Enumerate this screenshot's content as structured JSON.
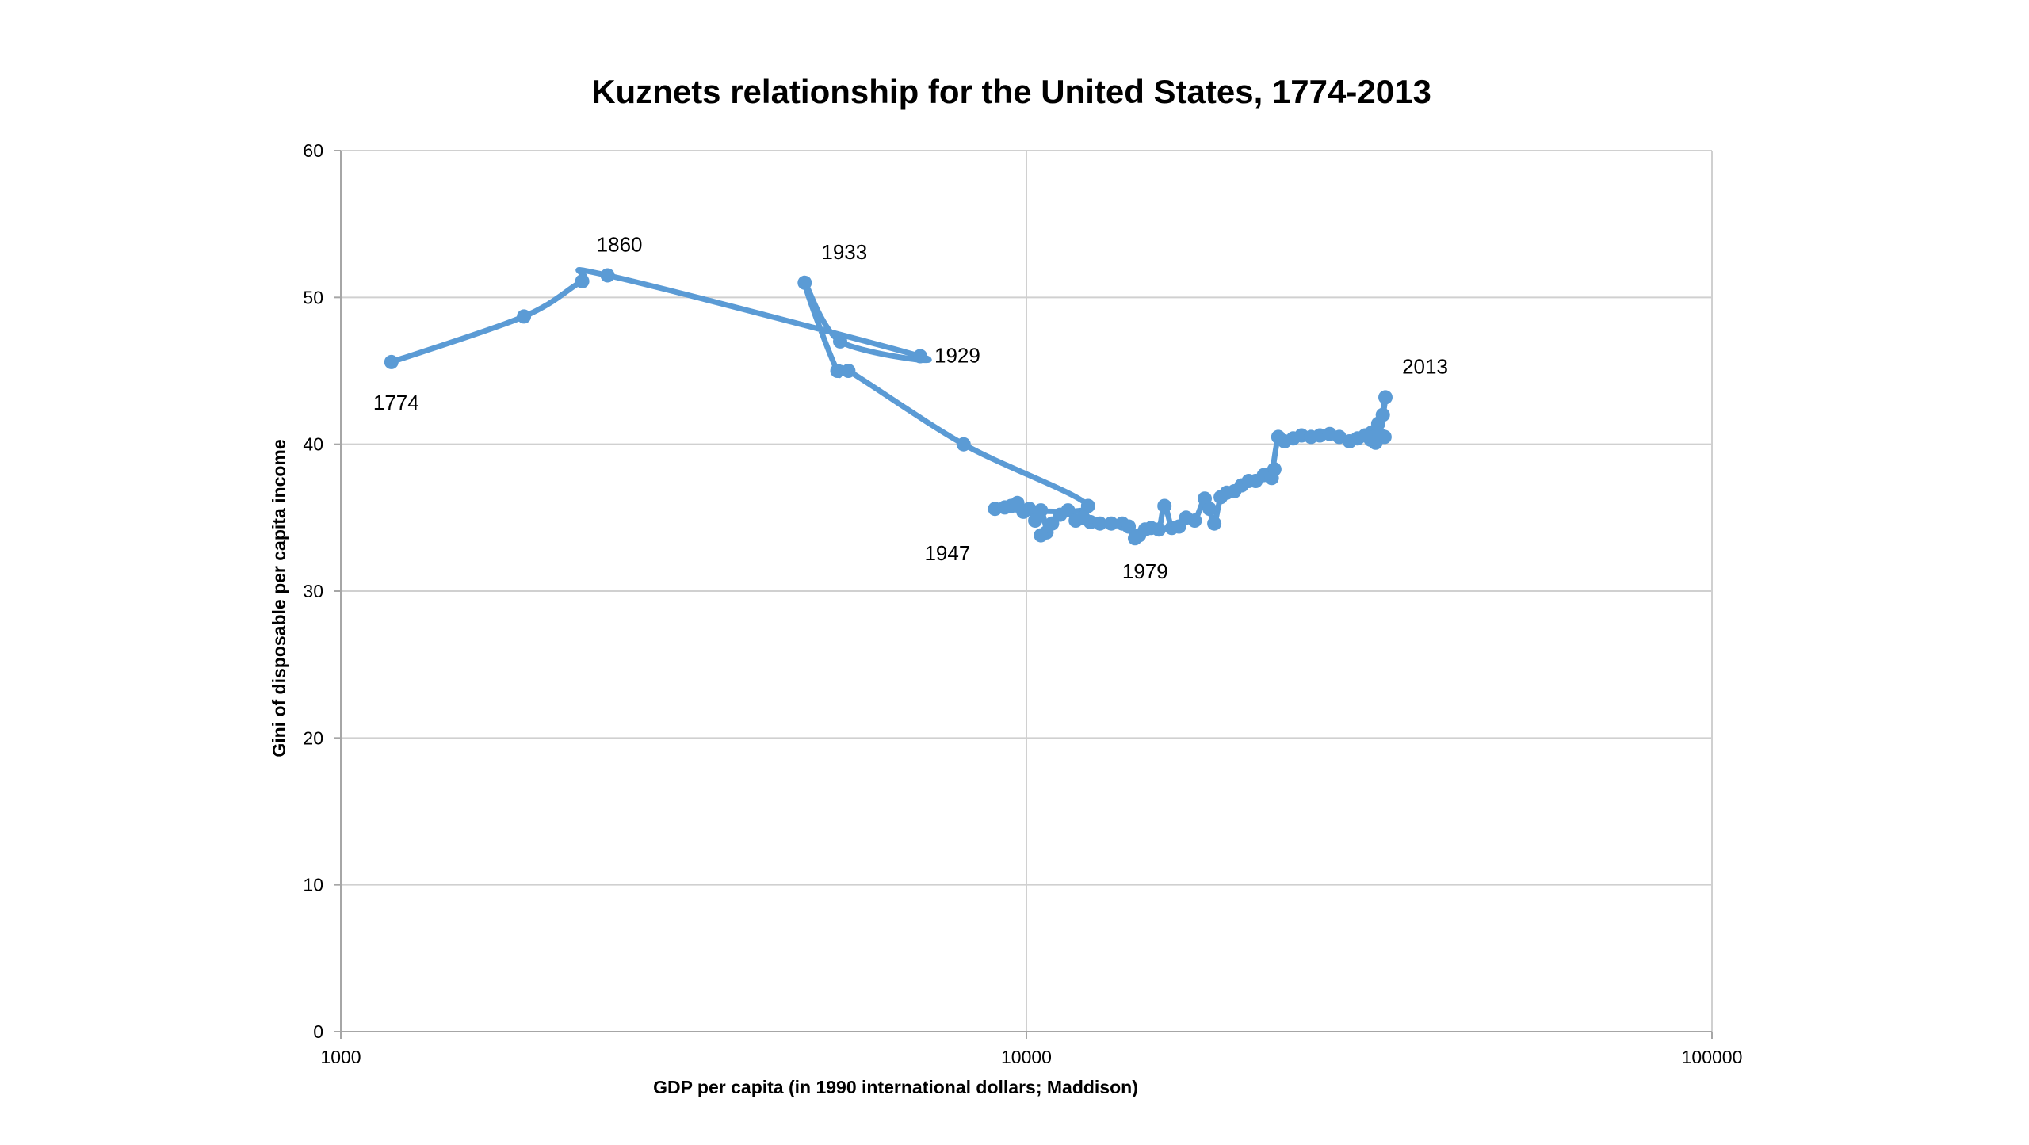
{
  "chart_data": {
    "type": "line",
    "title": "Kuznets relationship for the United States, 1774-2013",
    "xlabel": "GDP per capita (in 1990 international dollars; Maddison)",
    "ylabel": "Gini of disposable per capita income",
    "x_scale": "log",
    "xlim": [
      1000,
      100000
    ],
    "ylim": [
      0,
      60
    ],
    "x_ticks": [
      1000,
      10000,
      100000
    ],
    "x_tick_labels": [
      "1000",
      "10000",
      "100000"
    ],
    "y_ticks": [
      0,
      10,
      20,
      30,
      40,
      50,
      60
    ],
    "y_tick_labels": [
      "0",
      "10",
      "20",
      "30",
      "40",
      "50",
      "60"
    ],
    "grid": true,
    "legend": "none",
    "series_color": "#5b9bd5",
    "series": [
      {
        "x": [
          1185,
          1850,
          2250,
          2450,
          7000,
          5350,
          4750,
          5300,
          5500,
          8100,
          12300,
          9000,
          9300,
          9500,
          9700,
          9900,
          10100,
          10300,
          10500,
          10700,
          10500,
          10900,
          11200,
          11500,
          11800,
          12100,
          12400,
          12800,
          13300,
          13800,
          14100,
          14400,
          14600,
          14900,
          15200,
          15600,
          15900,
          16300,
          16700,
          17100,
          17600,
          18200,
          18500,
          18800,
          19200,
          19600,
          20100,
          20600,
          21100,
          21600,
          22200,
          22700,
          23000,
          22800,
          23300,
          23800,
          24500,
          25200,
          26000,
          26800,
          27700,
          28600,
          29600,
          30400,
          31200,
          31800,
          32300,
          32000,
          31600,
          31900,
          32200,
          32600,
          33100,
          33400,
          32700,
          33300
        ],
        "y": [
          45.6,
          48.7,
          51.1,
          51.5,
          46.0,
          47.0,
          51.0,
          45.0,
          45.0,
          40.0,
          35.8,
          35.6,
          35.7,
          35.8,
          36.0,
          35.4,
          35.6,
          34.8,
          35.5,
          34.0,
          33.8,
          34.6,
          35.2,
          35.5,
          34.8,
          35.0,
          34.7,
          34.6,
          34.6,
          34.6,
          34.4,
          33.6,
          33.8,
          34.2,
          34.3,
          34.2,
          35.8,
          34.3,
          34.4,
          35.0,
          34.8,
          36.3,
          35.6,
          34.6,
          36.4,
          36.7,
          36.8,
          37.2,
          37.5,
          37.5,
          37.9,
          38.0,
          38.3,
          37.7,
          40.5,
          40.2,
          40.4,
          40.6,
          40.5,
          40.6,
          40.7,
          40.5,
          40.2,
          40.4,
          40.6,
          40.3,
          40.1,
          40.4,
          40.6,
          40.8,
          40.5,
          41.4,
          42.0,
          43.2,
          40.7,
          40.5
        ]
      }
    ],
    "annotations": [
      {
        "text": "1774",
        "x": 1185,
        "y": 45.6,
        "pos": "below"
      },
      {
        "text": "1860",
        "x": 2450,
        "y": 51.5,
        "pos": "above"
      },
      {
        "text": "1933",
        "x": 4750,
        "y": 51.0,
        "pos": "above-right"
      },
      {
        "text": "1929",
        "x": 7000,
        "y": 46.0,
        "pos": "right"
      },
      {
        "text": "1947",
        "x": 9000,
        "y": 35.6,
        "pos": "below-left"
      },
      {
        "text": "1979",
        "x": 14900,
        "y": 34.2,
        "pos": "below"
      },
      {
        "text": "2013",
        "x": 33400,
        "y": 43.2,
        "pos": "above-right"
      }
    ]
  }
}
